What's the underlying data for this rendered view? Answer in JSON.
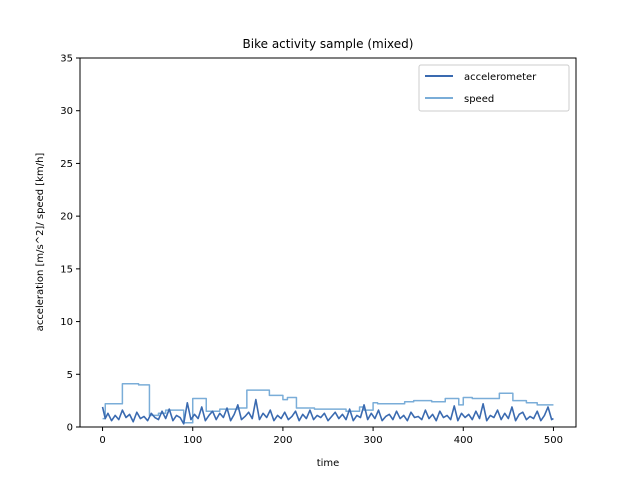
{
  "chart_data": {
    "type": "line",
    "title": "Bike activity sample (mixed)",
    "xlabel": "time",
    "ylabel": "acceleration [m/s^2]/ speed [km/h]",
    "xlim": [
      -25,
      525
    ],
    "ylim": [
      0,
      35
    ],
    "xticks": [
      0,
      100,
      200,
      300,
      400,
      500
    ],
    "yticks": [
      0,
      5,
      10,
      15,
      20,
      25,
      30,
      35
    ],
    "grid": false,
    "legend_position": "top-right",
    "series": [
      {
        "name": "accelerometer",
        "color": "#3a6ab0",
        "x": [
          0,
          3,
          6,
          10,
          14,
          18,
          22,
          26,
          30,
          34,
          38,
          42,
          46,
          50,
          54,
          58,
          62,
          66,
          70,
          74,
          78,
          82,
          86,
          90,
          94,
          98,
          102,
          106,
          110,
          114,
          118,
          122,
          126,
          130,
          134,
          138,
          142,
          146,
          150,
          154,
          158,
          162,
          166,
          170,
          174,
          178,
          182,
          186,
          190,
          194,
          198,
          202,
          206,
          210,
          214,
          218,
          222,
          226,
          230,
          234,
          238,
          242,
          246,
          250,
          254,
          258,
          262,
          266,
          270,
          274,
          278,
          282,
          286,
          290,
          294,
          298,
          302,
          306,
          310,
          314,
          318,
          322,
          326,
          330,
          334,
          338,
          342,
          346,
          350,
          354,
          358,
          362,
          366,
          370,
          374,
          378,
          382,
          386,
          390,
          394,
          398,
          402,
          406,
          410,
          414,
          418,
          422,
          426,
          430,
          434,
          438,
          442,
          446,
          450,
          454,
          458,
          462,
          466,
          470,
          474,
          478,
          482,
          486,
          490,
          494,
          498,
          500
        ],
        "y": [
          1.9,
          0.8,
          1.3,
          0.6,
          1.1,
          0.7,
          1.6,
          0.9,
          1.2,
          0.5,
          1.4,
          0.8,
          1.0,
          0.6,
          1.3,
          0.9,
          0.7,
          1.5,
          0.8,
          1.7,
          0.6,
          1.1,
          0.9,
          0.3,
          2.3,
          0.7,
          1.2,
          0.8,
          1.9,
          0.6,
          1.1,
          1.5,
          0.7,
          1.3,
          0.9,
          1.8,
          0.6,
          1.2,
          2.1,
          0.7,
          1.0,
          1.4,
          0.8,
          2.6,
          0.7,
          1.3,
          0.9,
          1.6,
          0.6,
          1.1,
          0.8,
          1.4,
          0.7,
          1.0,
          1.5,
          0.6,
          1.2,
          0.8,
          1.6,
          0.7,
          1.1,
          0.9,
          1.3,
          0.6,
          1.0,
          1.4,
          0.8,
          1.2,
          0.7,
          1.7,
          0.6,
          1.1,
          0.9,
          2.1,
          0.7,
          1.3,
          0.8,
          1.6,
          0.6,
          1.0,
          1.2,
          0.7,
          1.5,
          0.8,
          1.1,
          0.6,
          1.4,
          0.9,
          1.0,
          0.7,
          1.6,
          0.8,
          1.2,
          0.6,
          1.5,
          0.9,
          1.1,
          0.7,
          2.0,
          0.6,
          1.3,
          0.9,
          1.2,
          0.7,
          1.5,
          0.8,
          2.2,
          0.6,
          1.1,
          0.9,
          1.6,
          0.7,
          1.3,
          0.8,
          1.9,
          0.6,
          1.2,
          1.4,
          0.7,
          1.0,
          0.8,
          1.5,
          0.6,
          1.1,
          1.9,
          0.7,
          0.8
        ]
      },
      {
        "name": "speed",
        "color": "#7aadd8",
        "x": [
          0,
          3,
          3,
          22,
          22,
          40,
          40,
          50,
          50,
          52,
          52,
          62,
          62,
          70,
          70,
          90,
          90,
          100,
          100,
          115,
          115,
          130,
          130,
          150,
          150,
          160,
          160,
          185,
          185,
          200,
          200,
          205,
          205,
          215,
          215,
          235,
          235,
          270,
          270,
          285,
          285,
          290,
          290,
          300,
          300,
          305,
          305,
          335,
          335,
          345,
          345,
          365,
          365,
          380,
          380,
          395,
          395,
          400,
          400,
          410,
          410,
          440,
          440,
          455,
          455,
          470,
          470,
          482,
          482,
          500
        ],
        "y": [
          0.8,
          0.8,
          2.2,
          2.2,
          4.1,
          4.1,
          4.0,
          4.0,
          4.0,
          4.0,
          1.1,
          1.1,
          1.3,
          1.3,
          1.6,
          1.6,
          0.4,
          0.4,
          2.7,
          2.7,
          1.5,
          1.5,
          1.7,
          1.7,
          1.8,
          1.8,
          3.5,
          3.5,
          3.0,
          3.0,
          2.6,
          2.6,
          2.8,
          2.8,
          1.8,
          1.8,
          1.7,
          1.7,
          1.5,
          1.5,
          1.9,
          1.9,
          1.6,
          1.6,
          2.3,
          2.3,
          2.2,
          2.2,
          2.4,
          2.4,
          2.5,
          2.5,
          2.4,
          2.4,
          2.7,
          2.7,
          2.1,
          2.1,
          2.8,
          2.8,
          2.7,
          2.7,
          3.2,
          3.2,
          2.5,
          2.5,
          2.3,
          2.3,
          2.1,
          2.1
        ]
      }
    ]
  }
}
